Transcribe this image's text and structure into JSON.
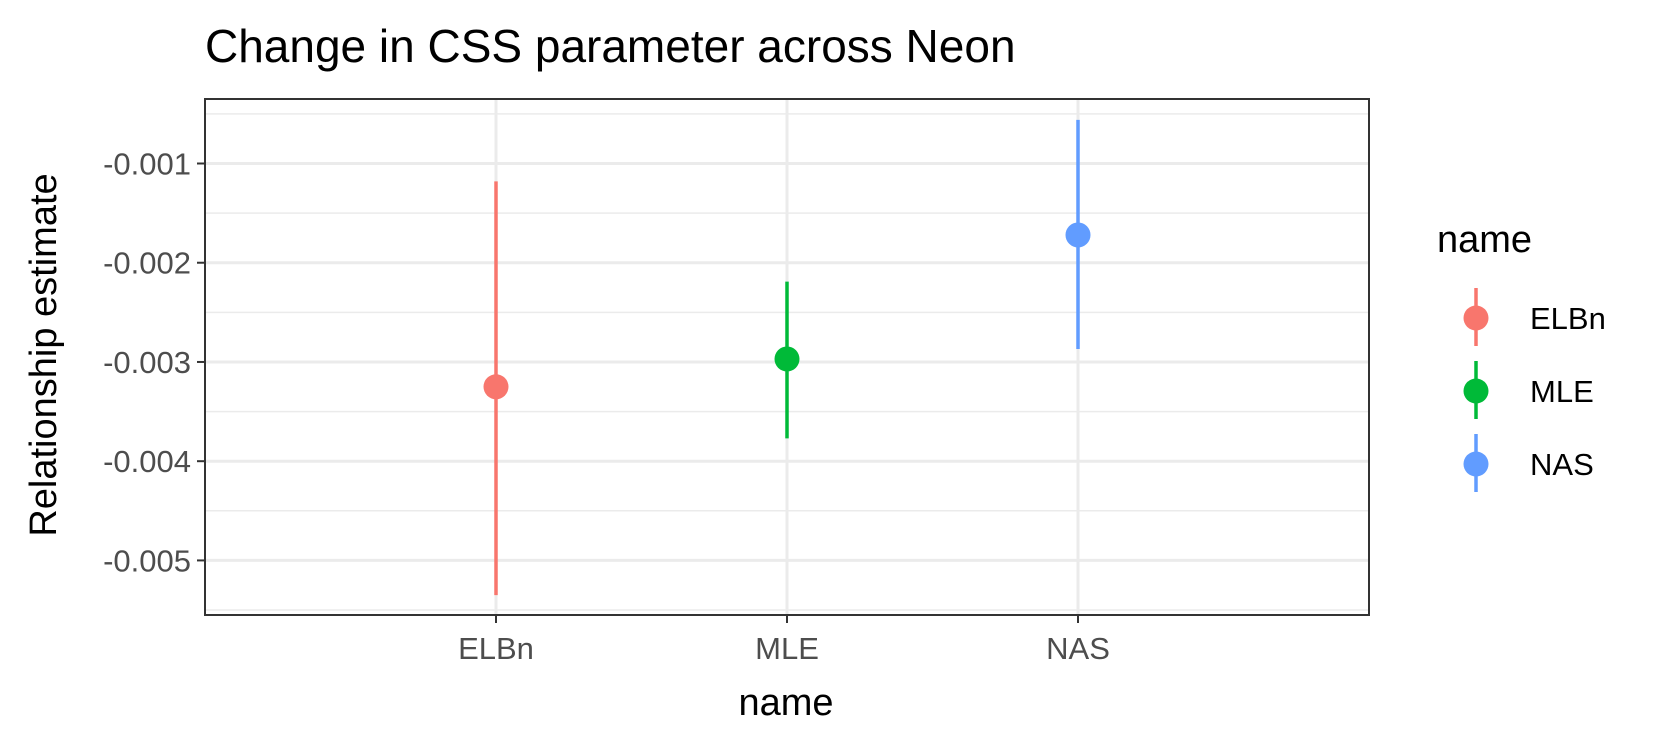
{
  "chart_data": {
    "type": "scatter",
    "title": "Change in CSS parameter across Neon",
    "xlabel": "name",
    "ylabel": "Relationship estimate",
    "categories": [
      "ELBn",
      "MLE",
      "NAS"
    ],
    "ylim": [
      -0.00555,
      -0.00035
    ],
    "yticks": [
      -0.001,
      -0.002,
      -0.003,
      -0.004,
      -0.005
    ],
    "ytick_labels": [
      "-0.001",
      "-0.002",
      "-0.003",
      "-0.004",
      "-0.005"
    ],
    "series": [
      {
        "name": "ELBn",
        "color": "#F8766D",
        "estimate": -0.00325,
        "lower": -0.00535,
        "upper": -0.00118
      },
      {
        "name": "MLE",
        "color": "#00BA38",
        "estimate": -0.00297,
        "lower": -0.00377,
        "upper": -0.00219
      },
      {
        "name": "NAS",
        "color": "#619CFF",
        "estimate": -0.00172,
        "lower": -0.00287,
        "upper": -0.00056
      }
    ],
    "grid": true,
    "legend": {
      "title": "name",
      "position": "right"
    }
  }
}
